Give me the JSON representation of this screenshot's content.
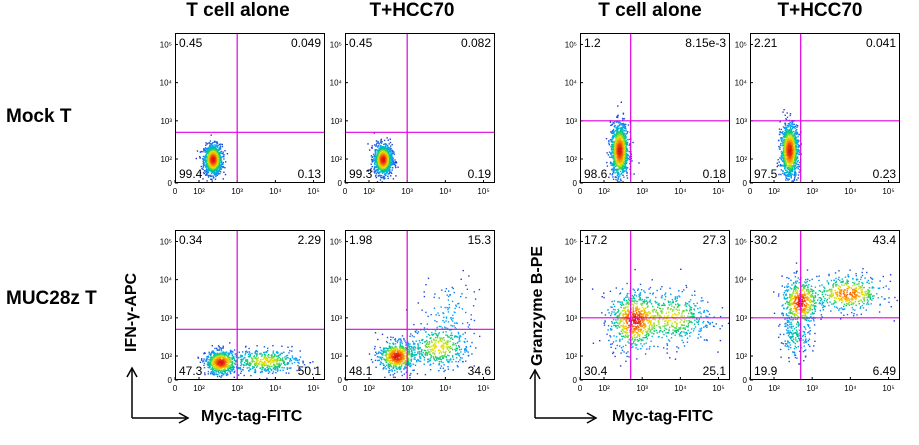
{
  "left_panel": {
    "col_titles": [
      "T cell alone",
      "T+HCC70"
    ],
    "y_axis_label": "IFN-γ-APC",
    "x_axis_label": "Myc-tag-FITC"
  },
  "right_panel": {
    "col_titles": [
      "T cell alone",
      "T+HCC70"
    ],
    "y_axis_label": "Granzyme B-PE",
    "x_axis_label": "Myc-tag-FITC"
  },
  "row_labels": [
    "Mock T",
    "MUC28z T"
  ],
  "colors": {
    "gate": "#e000e0",
    "frame": "#000000"
  },
  "chart_data": [
    {
      "type": "scatter",
      "panel": "IFN-gamma",
      "row": "Mock T",
      "condition": "T cell alone",
      "xlabel": "Myc-tag-FITC",
      "ylabel": "IFN-γ-APC",
      "x_ticks": [
        "0",
        "10²",
        "10³",
        "10⁴",
        "10⁵"
      ],
      "y_ticks": [
        "0",
        "10²",
        "10³",
        "10⁴",
        "10⁵"
      ],
      "quadrants": {
        "UL": "0.45",
        "UR": "0.049",
        "LL": "99.4",
        "LR": "0.13"
      },
      "gate": {
        "x": 1000,
        "y": 500
      },
      "population": "negative"
    },
    {
      "type": "scatter",
      "panel": "IFN-gamma",
      "row": "Mock T",
      "condition": "T+HCC70",
      "xlabel": "Myc-tag-FITC",
      "ylabel": "IFN-γ-APC",
      "x_ticks": [
        "0",
        "10²",
        "10³",
        "10⁴",
        "10⁵"
      ],
      "y_ticks": [
        "0",
        "10²",
        "10³",
        "10⁴",
        "10⁵"
      ],
      "quadrants": {
        "UL": "0.45",
        "UR": "0.082",
        "LL": "99.3",
        "LR": "0.19"
      },
      "gate": {
        "x": 1000,
        "y": 500
      },
      "population": "negative"
    },
    {
      "type": "scatter",
      "panel": "Granzyme B",
      "row": "Mock T",
      "condition": "T cell alone",
      "xlabel": "Myc-tag-FITC",
      "ylabel": "Granzyme B-PE",
      "x_ticks": [
        "0",
        "10²",
        "10³",
        "10⁴",
        "10⁵"
      ],
      "y_ticks": [
        "0",
        "10²",
        "10³",
        "10⁴",
        "10⁵"
      ],
      "quadrants": {
        "UL": "1.2",
        "UR": "8.15e-3",
        "LL": "98.6",
        "LR": "0.18"
      },
      "gate": {
        "x": 500,
        "y": 1000
      },
      "population": "negative-tall"
    },
    {
      "type": "scatter",
      "panel": "Granzyme B",
      "row": "Mock T",
      "condition": "T+HCC70",
      "xlabel": "Myc-tag-FITC",
      "ylabel": "Granzyme B-PE",
      "x_ticks": [
        "0",
        "10²",
        "10³",
        "10⁴",
        "10⁵"
      ],
      "y_ticks": [
        "0",
        "10²",
        "10³",
        "10⁴",
        "10⁵"
      ],
      "quadrants": {
        "UL": "2.21",
        "UR": "0.041",
        "LL": "97.5",
        "LR": "0.23"
      },
      "gate": {
        "x": 500,
        "y": 1000
      },
      "population": "negative-tall"
    },
    {
      "type": "scatter",
      "panel": "IFN-gamma",
      "row": "MUC28z T",
      "condition": "T cell alone",
      "xlabel": "Myc-tag-FITC",
      "ylabel": "IFN-γ-APC",
      "x_ticks": [
        "0",
        "10²",
        "10³",
        "10⁴",
        "10⁵"
      ],
      "y_ticks": [
        "0",
        "10²",
        "10³",
        "10⁴",
        "10⁵"
      ],
      "quadrants": {
        "UL": "0.34",
        "UR": "2.29",
        "LL": "47.3",
        "LR": "50.1"
      },
      "gate": {
        "x": 1000,
        "y": 500
      },
      "population": "car-low"
    },
    {
      "type": "scatter",
      "panel": "IFN-gamma",
      "row": "MUC28z T",
      "condition": "T+HCC70",
      "xlabel": "Myc-tag-FITC",
      "ylabel": "IFN-γ-APC",
      "x_ticks": [
        "0",
        "10²",
        "10³",
        "10⁴",
        "10⁵"
      ],
      "y_ticks": [
        "0",
        "10²",
        "10³",
        "10⁴",
        "10⁵"
      ],
      "quadrants": {
        "UL": "1.98",
        "UR": "15.3",
        "LL": "48.1",
        "LR": "34.6"
      },
      "gate": {
        "x": 1000,
        "y": 500
      },
      "population": "car-activated"
    },
    {
      "type": "scatter",
      "panel": "Granzyme B",
      "row": "MUC28z T",
      "condition": "T cell alone",
      "xlabel": "Myc-tag-FITC",
      "ylabel": "Granzyme B-PE",
      "x_ticks": [
        "0",
        "10²",
        "10³",
        "10⁴",
        "10⁵"
      ],
      "y_ticks": [
        "0",
        "10²",
        "10³",
        "10⁴",
        "10⁵"
      ],
      "quadrants": {
        "UL": "17.2",
        "UR": "27.3",
        "LL": "30.4",
        "LR": "25.1"
      },
      "gate": {
        "x": 500,
        "y": 1000
      },
      "population": "gzm-mid"
    },
    {
      "type": "scatter",
      "panel": "Granzyme B",
      "row": "MUC28z T",
      "condition": "T+HCC70",
      "xlabel": "Myc-tag-FITC",
      "ylabel": "Granzyme B-PE",
      "x_ticks": [
        "0",
        "10²",
        "10³",
        "10⁴",
        "10⁵"
      ],
      "y_ticks": [
        "0",
        "10²",
        "10³",
        "10⁴",
        "10⁵"
      ],
      "quadrants": {
        "UL": "30.2",
        "UR": "43.4",
        "LL": "19.9",
        "LR": "6.49"
      },
      "gate": {
        "x": 500,
        "y": 1000
      },
      "population": "gzm-high"
    }
  ]
}
